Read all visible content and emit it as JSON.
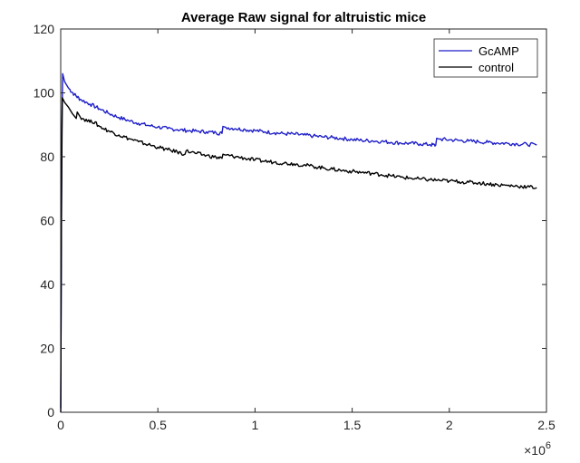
{
  "chart_data": {
    "type": "line",
    "title": "Average Raw signal for altruistic mice",
    "xlabel": "",
    "ylabel": "",
    "xlim": [
      0,
      2500000
    ],
    "ylim": [
      0,
      120
    ],
    "x_exponent_label": "×10",
    "x_exponent_power": "6",
    "x_ticks": [
      {
        "value": 0,
        "label": "0"
      },
      {
        "value": 500000,
        "label": "0.5"
      },
      {
        "value": 1000000,
        "label": "1"
      },
      {
        "value": 1500000,
        "label": "1.5"
      },
      {
        "value": 2000000,
        "label": "2"
      },
      {
        "value": 2500000,
        "label": "2.5"
      }
    ],
    "y_ticks": [
      {
        "value": 0,
        "label": "0"
      },
      {
        "value": 20,
        "label": "20"
      },
      {
        "value": 40,
        "label": "40"
      },
      {
        "value": 60,
        "label": "60"
      },
      {
        "value": 80,
        "label": "80"
      },
      {
        "value": 100,
        "label": "100"
      },
      {
        "value": 120,
        "label": "120"
      }
    ],
    "grid": false,
    "legend_position": "top-right",
    "series": [
      {
        "name": "GcAMP",
        "color": "#1f1fc8",
        "points": [
          [
            0,
            0
          ],
          [
            3000,
            47
          ],
          [
            6000,
            88
          ],
          [
            10000,
            106
          ],
          [
            20000,
            103.5
          ],
          [
            40000,
            101.5
          ],
          [
            70000,
            99.5
          ],
          [
            100000,
            98
          ],
          [
            150000,
            96.5
          ],
          [
            200000,
            95
          ],
          [
            250000,
            93.5
          ],
          [
            300000,
            92.3
          ],
          [
            350000,
            91.3
          ],
          [
            400000,
            90.5
          ],
          [
            450000,
            89.8
          ],
          [
            500000,
            89.3
          ],
          [
            550000,
            88.8
          ],
          [
            600000,
            88.5
          ],
          [
            650000,
            88.2
          ],
          [
            700000,
            88
          ],
          [
            750000,
            87.8
          ],
          [
            800000,
            87.5
          ],
          [
            830000,
            87.3
          ],
          [
            835000,
            89.5
          ],
          [
            850000,
            89.2
          ],
          [
            900000,
            88.8
          ],
          [
            950000,
            88.5
          ],
          [
            1000000,
            88.2
          ],
          [
            1050000,
            87.8
          ],
          [
            1100000,
            87.5
          ],
          [
            1150000,
            87.2
          ],
          [
            1200000,
            87.1
          ],
          [
            1250000,
            86.8
          ],
          [
            1300000,
            86.5
          ],
          [
            1350000,
            86.2
          ],
          [
            1400000,
            86
          ],
          [
            1450000,
            85.7
          ],
          [
            1500000,
            85.4
          ],
          [
            1550000,
            85.1
          ],
          [
            1600000,
            85
          ],
          [
            1650000,
            84.8
          ],
          [
            1700000,
            84.5
          ],
          [
            1750000,
            84.3
          ],
          [
            1800000,
            84.2
          ],
          [
            1850000,
            84
          ],
          [
            1900000,
            83.8
          ],
          [
            1930000,
            83.6
          ],
          [
            1935000,
            85.8
          ],
          [
            1950000,
            85.5
          ],
          [
            2000000,
            85.3
          ],
          [
            2050000,
            85.1
          ],
          [
            2100000,
            84.9
          ],
          [
            2150000,
            84.7
          ],
          [
            2200000,
            84.5
          ],
          [
            2250000,
            84.3
          ],
          [
            2300000,
            84.2
          ],
          [
            2350000,
            84
          ],
          [
            2400000,
            83.9
          ],
          [
            2450000,
            83.7
          ]
        ]
      },
      {
        "name": "control",
        "color": "#000000",
        "points": [
          [
            0,
            0
          ],
          [
            4000,
            65
          ],
          [
            8000,
            98.5
          ],
          [
            20000,
            97
          ],
          [
            40000,
            95.5
          ],
          [
            60000,
            93.5
          ],
          [
            80000,
            92
          ],
          [
            85000,
            94
          ],
          [
            100000,
            92.5
          ],
          [
            150000,
            90.8
          ],
          [
            155000,
            91.5
          ],
          [
            200000,
            89.5
          ],
          [
            250000,
            88
          ],
          [
            300000,
            86.8
          ],
          [
            350000,
            85.7
          ],
          [
            400000,
            84.7
          ],
          [
            450000,
            83.8
          ],
          [
            500000,
            83
          ],
          [
            550000,
            82.2
          ],
          [
            600000,
            81.5
          ],
          [
            640000,
            80.8
          ],
          [
            645000,
            81.8
          ],
          [
            700000,
            81
          ],
          [
            750000,
            80.4
          ],
          [
            800000,
            79.8
          ],
          [
            830000,
            79.5
          ],
          [
            835000,
            80.8
          ],
          [
            850000,
            80.5
          ],
          [
            900000,
            80
          ],
          [
            950000,
            79.5
          ],
          [
            1000000,
            79
          ],
          [
            1050000,
            78.6
          ],
          [
            1100000,
            78.3
          ],
          [
            1150000,
            78
          ],
          [
            1200000,
            77.8
          ],
          [
            1250000,
            77.4
          ],
          [
            1300000,
            77
          ],
          [
            1350000,
            76.5
          ],
          [
            1400000,
            76.1
          ],
          [
            1450000,
            75.7
          ],
          [
            1500000,
            75.4
          ],
          [
            1550000,
            75.1
          ],
          [
            1600000,
            74.8
          ],
          [
            1650000,
            74.4
          ],
          [
            1700000,
            74
          ],
          [
            1750000,
            73.6
          ],
          [
            1800000,
            73.3
          ],
          [
            1850000,
            73
          ],
          [
            1900000,
            72.8
          ],
          [
            1950000,
            72.6
          ],
          [
            2000000,
            72.4
          ],
          [
            2050000,
            72.2
          ],
          [
            2100000,
            72
          ],
          [
            2150000,
            71.8
          ],
          [
            2200000,
            71.5
          ],
          [
            2250000,
            71.2
          ],
          [
            2300000,
            71
          ],
          [
            2350000,
            70.8
          ],
          [
            2400000,
            70.6
          ],
          [
            2450000,
            70.3
          ]
        ]
      }
    ]
  }
}
